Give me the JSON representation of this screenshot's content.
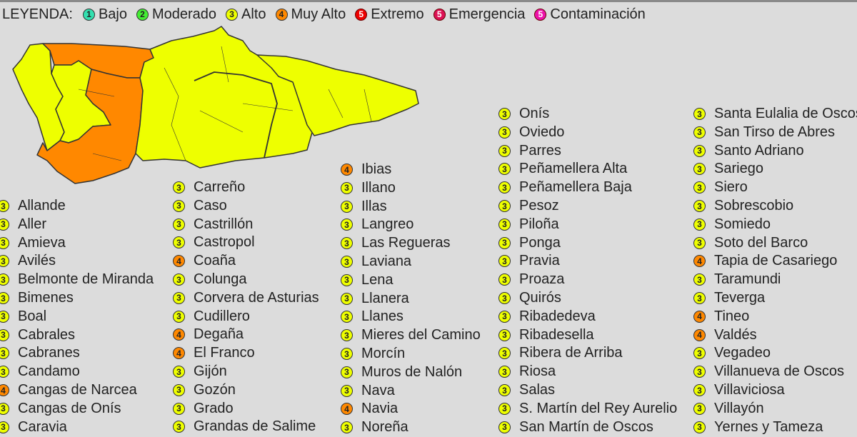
{
  "level_colors": {
    "1": "#33e0b0",
    "2": "#44ee33",
    "3": "#eeff00",
    "4": "#ff8800",
    "5e": "#ee0000",
    "5m": "#dd1155",
    "5c": "#ee11aa"
  },
  "legend": {
    "title": "LEYENDA:",
    "items": [
      {
        "level": "1",
        "key": "1",
        "label": "Bajo"
      },
      {
        "level": "2",
        "key": "2",
        "label": "Moderado"
      },
      {
        "level": "3",
        "key": "3",
        "label": "Alto"
      },
      {
        "level": "4",
        "key": "4",
        "label": "Muy Alto"
      },
      {
        "level": "5",
        "key": "5e",
        "label": "Extremo"
      },
      {
        "level": "5",
        "key": "5m",
        "label": "Emergencia"
      },
      {
        "level": "5",
        "key": "5c",
        "label": "Contaminación"
      }
    ]
  },
  "map": {
    "region": "Asturias",
    "orange_level": "4",
    "yellow_level": "3"
  },
  "columns": [
    [
      [
        "3",
        "Allande"
      ],
      [
        "3",
        "Aller"
      ],
      [
        "3",
        "Amieva"
      ],
      [
        "3",
        "Avilés"
      ],
      [
        "3",
        "Belmonte de Miranda"
      ],
      [
        "3",
        "Bimenes"
      ],
      [
        "3",
        "Boal"
      ],
      [
        "3",
        "Cabrales"
      ],
      [
        "3",
        "Cabranes"
      ],
      [
        "3",
        "Candamo"
      ],
      [
        "4",
        "Cangas de Narcea"
      ],
      [
        "3",
        "Cangas de Onís"
      ],
      [
        "3",
        "Caravia"
      ]
    ],
    [
      [
        "3",
        "Carreño"
      ],
      [
        "3",
        "Caso"
      ],
      [
        "3",
        "Castrillón"
      ],
      [
        "3",
        "Castropol"
      ],
      [
        "4",
        "Coaña"
      ],
      [
        "3",
        "Colunga"
      ],
      [
        "3",
        "Corvera de Asturias"
      ],
      [
        "3",
        "Cudillero"
      ],
      [
        "4",
        "Degaña"
      ],
      [
        "4",
        "El Franco"
      ],
      [
        "3",
        "Gijón"
      ],
      [
        "3",
        "Gozón"
      ],
      [
        "3",
        "Grado"
      ],
      [
        "3",
        "Grandas de Salime"
      ]
    ],
    [
      [
        "4",
        "Ibias"
      ],
      [
        "3",
        "Illano"
      ],
      [
        "3",
        "Illas"
      ],
      [
        "3",
        "Langreo"
      ],
      [
        "3",
        "Las Regueras"
      ],
      [
        "3",
        "Laviana"
      ],
      [
        "3",
        "Lena"
      ],
      [
        "3",
        "Llanera"
      ],
      [
        "3",
        "Llanes"
      ],
      [
        "3",
        "Mieres del Camino"
      ],
      [
        "3",
        "Morcín"
      ],
      [
        "3",
        "Muros de Nalón"
      ],
      [
        "3",
        "Nava"
      ],
      [
        "4",
        "Navia"
      ],
      [
        "3",
        "Noreña"
      ]
    ],
    [
      [
        "3",
        "Onís"
      ],
      [
        "3",
        "Oviedo"
      ],
      [
        "3",
        "Parres"
      ],
      [
        "3",
        "Peñamellera Alta"
      ],
      [
        "3",
        "Peñamellera Baja"
      ],
      [
        "3",
        "Pesoz"
      ],
      [
        "3",
        "Piloña"
      ],
      [
        "3",
        "Ponga"
      ],
      [
        "3",
        "Pravia"
      ],
      [
        "3",
        "Proaza"
      ],
      [
        "3",
        "Quirós"
      ],
      [
        "3",
        "Ribadedeva"
      ],
      [
        "3",
        "Ribadesella"
      ],
      [
        "3",
        "Ribera de Arriba"
      ],
      [
        "3",
        "Riosa"
      ],
      [
        "3",
        "Salas"
      ],
      [
        "3",
        "S. Martín del Rey Aurelio"
      ],
      [
        "3",
        "San Martín de Oscos"
      ]
    ],
    [
      [
        "3",
        "Santa Eulalia de Oscos"
      ],
      [
        "3",
        "San Tirso de Abres"
      ],
      [
        "3",
        "Santo Adriano"
      ],
      [
        "3",
        "Sariego"
      ],
      [
        "3",
        "Siero"
      ],
      [
        "3",
        "Sobrescobio"
      ],
      [
        "3",
        "Somiedo"
      ],
      [
        "3",
        "Soto del Barco"
      ],
      [
        "4",
        "Tapia de Casariego"
      ],
      [
        "3",
        "Taramundi"
      ],
      [
        "3",
        "Teverga"
      ],
      [
        "4",
        "Tineo"
      ],
      [
        "4",
        "Valdés"
      ],
      [
        "3",
        "Vegadeo"
      ],
      [
        "3",
        "Villanueva de Oscos"
      ],
      [
        "3",
        "Villaviciosa"
      ],
      [
        "3",
        "Villayón"
      ],
      [
        "3",
        "Yernes y Tameza"
      ]
    ]
  ]
}
